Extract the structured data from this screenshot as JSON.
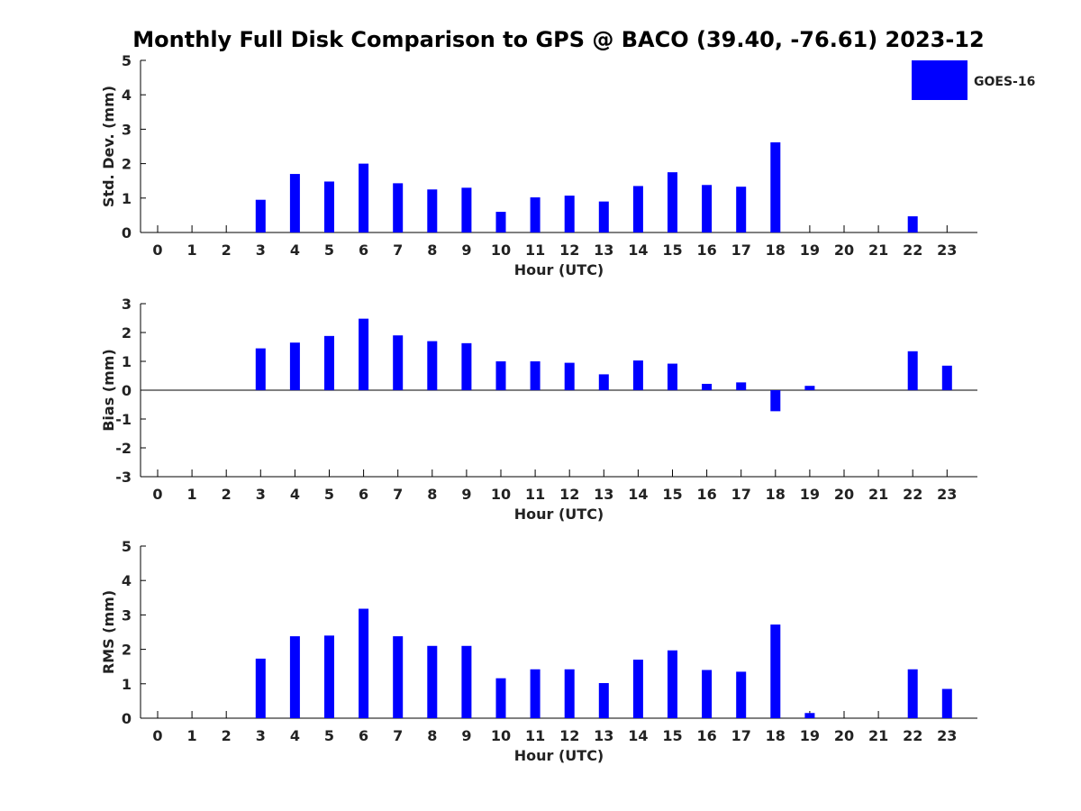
{
  "title": "Monthly Full Disk Comparison to GPS @ BACO (39.40, -76.61) 2023-12",
  "legend": {
    "label": "GOES-16",
    "color": "#0000ff",
    "placement": "top-right"
  },
  "chart_data": [
    {
      "type": "bar",
      "id": "stddev",
      "ylabel": "Std. Dev. (mm)",
      "xlabel": "Hour (UTC)",
      "ylim": [
        0,
        5
      ],
      "yticks": [
        "0",
        "1",
        "2",
        "3",
        "4",
        "5"
      ],
      "categories": [
        "0",
        "1",
        "2",
        "3",
        "4",
        "5",
        "6",
        "7",
        "8",
        "9",
        "10",
        "11",
        "12",
        "13",
        "14",
        "15",
        "16",
        "17",
        "18",
        "19",
        "20",
        "21",
        "22",
        "23"
      ],
      "series": [
        {
          "name": "GOES-16",
          "values": [
            null,
            null,
            null,
            0.95,
            1.7,
            1.48,
            2.0,
            1.43,
            1.25,
            1.3,
            0.6,
            1.02,
            1.07,
            0.9,
            1.35,
            1.75,
            1.38,
            1.33,
            2.62,
            null,
            null,
            null,
            0.47,
            null
          ]
        }
      ]
    },
    {
      "type": "bar",
      "id": "bias",
      "ylabel": "Bias (mm)",
      "xlabel": "Hour (UTC)",
      "ylim": [
        -3,
        3
      ],
      "yticks": [
        "-3",
        "-2",
        "-1",
        "0",
        "1",
        "2",
        "3"
      ],
      "categories": [
        "0",
        "1",
        "2",
        "3",
        "4",
        "5",
        "6",
        "7",
        "8",
        "9",
        "10",
        "11",
        "12",
        "13",
        "14",
        "15",
        "16",
        "17",
        "18",
        "19",
        "20",
        "21",
        "22",
        "23"
      ],
      "series": [
        {
          "name": "GOES-16",
          "values": [
            null,
            null,
            null,
            1.45,
            1.65,
            1.88,
            2.48,
            1.9,
            1.7,
            1.63,
            1.0,
            1.0,
            0.95,
            0.55,
            1.03,
            0.92,
            0.22,
            0.27,
            -0.73,
            0.15,
            null,
            null,
            1.35,
            0.85
          ]
        }
      ]
    },
    {
      "type": "bar",
      "id": "rms",
      "ylabel": "RMS (mm)",
      "xlabel": "Hour (UTC)",
      "ylim": [
        0,
        5
      ],
      "yticks": [
        "0",
        "1",
        "2",
        "3",
        "4",
        "5"
      ],
      "categories": [
        "0",
        "1",
        "2",
        "3",
        "4",
        "5",
        "6",
        "7",
        "8",
        "9",
        "10",
        "11",
        "12",
        "13",
        "14",
        "15",
        "16",
        "17",
        "18",
        "19",
        "20",
        "21",
        "22",
        "23"
      ],
      "series": [
        {
          "name": "GOES-16",
          "values": [
            null,
            null,
            null,
            1.73,
            2.38,
            2.4,
            3.18,
            2.38,
            2.1,
            2.1,
            1.16,
            1.42,
            1.42,
            1.02,
            1.7,
            1.97,
            1.4,
            1.35,
            2.72,
            0.15,
            null,
            null,
            1.42,
            0.85
          ]
        }
      ]
    }
  ]
}
